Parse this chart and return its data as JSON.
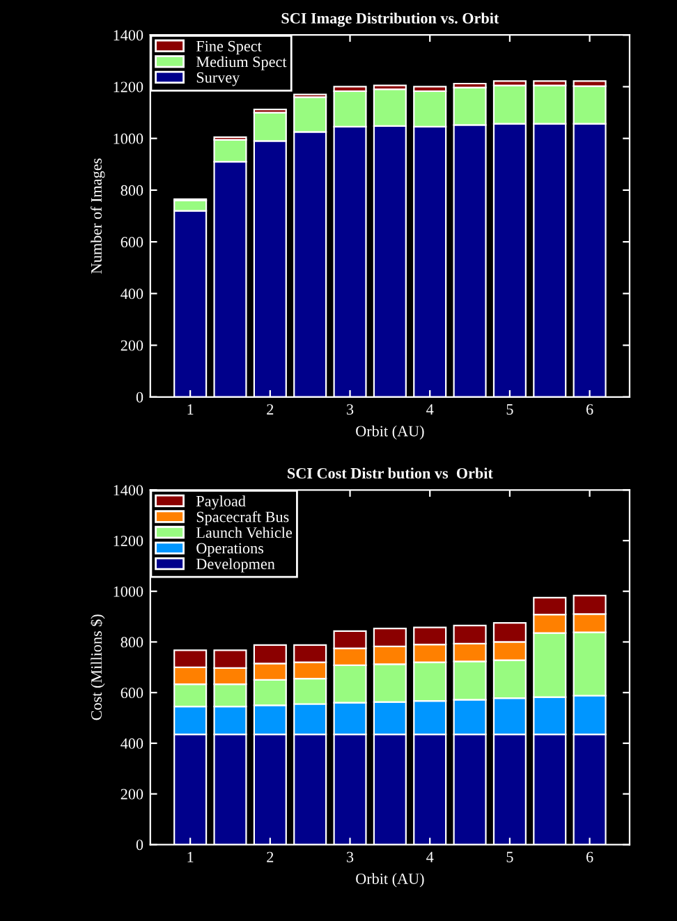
{
  "chart_data": [
    {
      "type": "bar",
      "stacked": true,
      "title": "SCI Image Distribution vs. Orbit",
      "xlabel": "Orbit (AU)",
      "ylabel": "Number of Images",
      "x": [
        1,
        1.5,
        2,
        2.5,
        3,
        3.5,
        4,
        4.5,
        5,
        5.5,
        6
      ],
      "xlim": [
        0.5,
        6.5
      ],
      "xticks": [
        1,
        2,
        3,
        4,
        5,
        6
      ],
      "ylim": [
        0,
        1400
      ],
      "yticks": [
        0,
        200,
        400,
        600,
        800,
        1000,
        1200,
        1400
      ],
      "legend": "top left",
      "grid": false,
      "series": [
        {
          "name": "Survey",
          "color": "#00008b",
          "values": [
            720,
            910,
            990,
            1025,
            1045,
            1048,
            1045,
            1052,
            1057,
            1057,
            1057
          ]
        },
        {
          "name": "Medium Spect",
          "color": "#98fb80",
          "values": [
            40,
            85,
            110,
            135,
            138,
            142,
            138,
            145,
            148,
            148,
            145
          ]
        },
        {
          "name": "Fine Spect",
          "color": "#8b0000",
          "values": [
            5,
            10,
            12,
            10,
            17,
            15,
            17,
            15,
            17,
            17,
            20
          ]
        }
      ]
    },
    {
      "type": "bar",
      "stacked": true,
      "title": "SCI Cost Distr bution vs  Orbit",
      "xlabel": "Orbit (AU)",
      "ylabel": "Cost (Millions $)",
      "x": [
        1,
        1.5,
        2,
        2.5,
        3,
        3.5,
        4,
        4.5,
        5,
        5.5,
        6
      ],
      "xlim": [
        0.5,
        6.5
      ],
      "xticks": [
        1,
        2,
        3,
        4,
        5,
        6
      ],
      "ylim": [
        0,
        1400
      ],
      "yticks": [
        0,
        200,
        400,
        600,
        800,
        1000,
        1200,
        1400
      ],
      "legend": "top left",
      "grid": false,
      "series": [
        {
          "name": "Developmen",
          "color": "#00008b",
          "values": [
            435,
            435,
            435,
            435,
            435,
            435,
            435,
            435,
            435,
            435,
            435
          ]
        },
        {
          "name": "Operations",
          "color": "#0096ff",
          "values": [
            110,
            110,
            115,
            120,
            125,
            128,
            132,
            137,
            143,
            147,
            153
          ]
        },
        {
          "name": "Launch Vehicle",
          "color": "#98fb80",
          "values": [
            88,
            88,
            100,
            100,
            148,
            149,
            153,
            151,
            150,
            253,
            250
          ]
        },
        {
          "name": "Spacecraft Bus",
          "color": "#ff8000",
          "values": [
            67,
            64,
            65,
            65,
            67,
            70,
            70,
            70,
            72,
            73,
            72
          ]
        },
        {
          "name": "Payload",
          "color": "#8b0000",
          "values": [
            67,
            70,
            73,
            68,
            68,
            71,
            67,
            72,
            75,
            67,
            73
          ]
        }
      ]
    }
  ]
}
